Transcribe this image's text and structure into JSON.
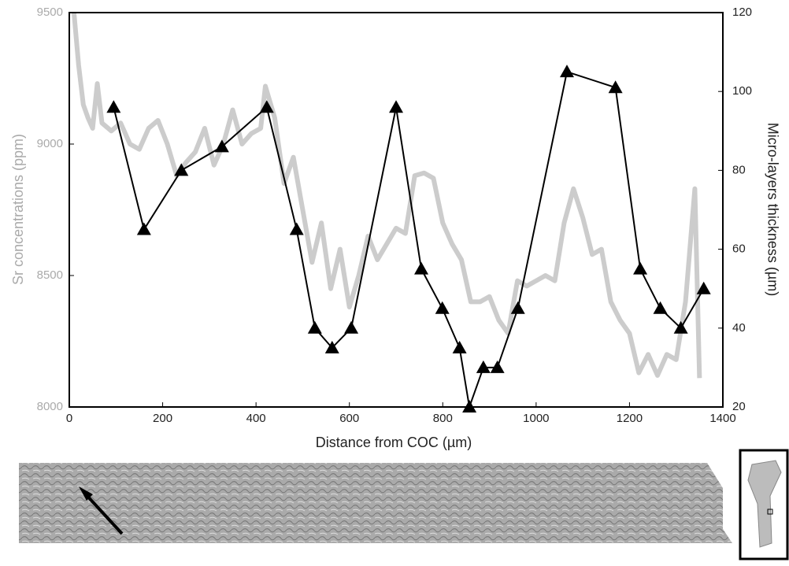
{
  "chart_data": {
    "type": "line",
    "xlabel": "Distance from COC (µm)",
    "ylabel": "Sr concentrations (ppm)",
    "y2label": "Micro-layers thickness (µm)",
    "xlim": [
      0,
      1400
    ],
    "xticks": [
      0,
      200,
      400,
      600,
      800,
      1000,
      1200,
      1400
    ],
    "ylim": [
      8000,
      9500
    ],
    "yticks": [
      8000,
      8500,
      9000,
      9500
    ],
    "y2lim": [
      20,
      120
    ],
    "y2ticks": [
      20,
      40,
      60,
      80,
      100,
      120
    ],
    "series": [
      {
        "color": "#cccccc",
        "axis": "y",
        "x": [
          10,
          20,
          30,
          40,
          50,
          60,
          70,
          90,
          110,
          130,
          150,
          170,
          190,
          210,
          230,
          250,
          270,
          290,
          310,
          330,
          350,
          370,
          390,
          410,
          420,
          440,
          460,
          480,
          500,
          520,
          540,
          560,
          580,
          600,
          620,
          640,
          660,
          680,
          700,
          720,
          740,
          760,
          780,
          800,
          820,
          840,
          860,
          880,
          900,
          920,
          940,
          960,
          980,
          1000,
          1020,
          1040,
          1060,
          1080,
          1100,
          1120,
          1140,
          1160,
          1180,
          1200,
          1220,
          1240,
          1260,
          1280,
          1300,
          1320,
          1340,
          1350
        ],
        "values": [
          9500,
          9300,
          9150,
          9100,
          9060,
          9230,
          9080,
          9050,
          9080,
          9000,
          8980,
          9060,
          9090,
          9000,
          8880,
          8930,
          8970,
          9060,
          8920,
          9000,
          9130,
          9000,
          9040,
          9060,
          9220,
          9100,
          8850,
          8950,
          8750,
          8550,
          8700,
          8450,
          8600,
          8380,
          8500,
          8650,
          8560,
          8620,
          8680,
          8660,
          8880,
          8890,
          8870,
          8700,
          8620,
          8560,
          8400,
          8400,
          8420,
          8330,
          8280,
          8480,
          8460,
          8480,
          8500,
          8480,
          8700,
          8830,
          8720,
          8580,
          8600,
          8400,
          8330,
          8280,
          8130,
          8200,
          8120,
          8200,
          8180,
          8400,
          8830,
          8110
        ]
      },
      {
        "color": "#000000",
        "axis": "y2",
        "x": [
          95,
          160,
          240,
          327,
          423,
          487,
          526,
          563,
          604,
          700,
          754,
          799,
          836,
          857,
          887,
          917,
          961,
          1066,
          1170,
          1223,
          1266,
          1310,
          1359
        ],
        "values": [
          96,
          65,
          80,
          86,
          96,
          65,
          40,
          35,
          40,
          96,
          55,
          45,
          35,
          20,
          30,
          30,
          45,
          105,
          101,
          55,
          45,
          40,
          50
        ]
      }
    ]
  }
}
